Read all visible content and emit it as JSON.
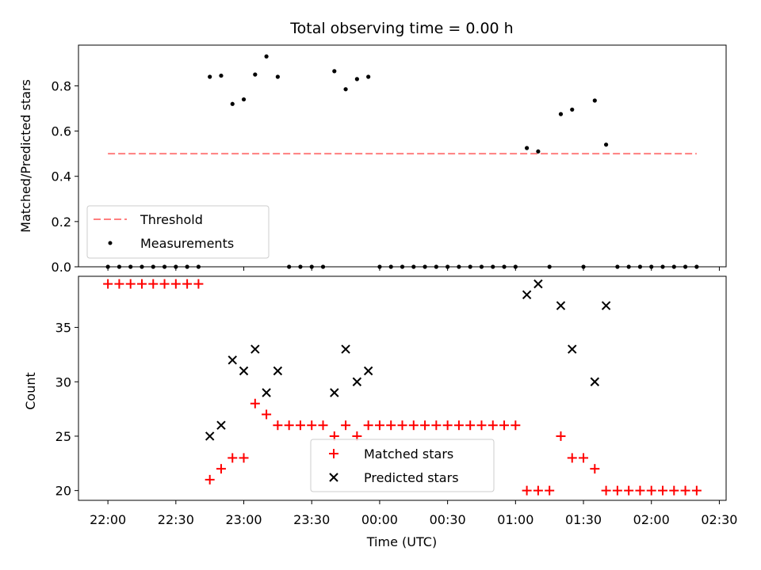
{
  "chart_data": [
    {
      "type": "scatter",
      "title": "Total observing time = 0.00 h",
      "xlabel": "",
      "ylabel": "Matched/Predicted stars",
      "ylim": [
        0,
        0.98
      ],
      "yticks": [
        0.0,
        0.2,
        0.4,
        0.6,
        0.8
      ],
      "ytick_labels": [
        "0.0",
        "0.2",
        "0.4",
        "0.6",
        "0.8"
      ],
      "grid": false,
      "legend": "lower-left",
      "series": [
        {
          "name": "Threshold",
          "style": "dashed-line",
          "color": "#ff7f7f",
          "x": [
            "22:00",
            "02:20"
          ],
          "y": [
            0.5,
            0.5
          ]
        },
        {
          "name": "Measurements",
          "style": "dot",
          "color": "#000000",
          "x": [
            "22:00",
            "22:05",
            "22:10",
            "22:15",
            "22:20",
            "22:25",
            "22:30",
            "22:35",
            "22:40",
            "22:45",
            "22:50",
            "22:55",
            "23:00",
            "23:05",
            "23:10",
            "23:15",
            "23:20",
            "23:25",
            "23:30",
            "23:35",
            "23:40",
            "23:45",
            "23:50",
            "23:55",
            "00:00",
            "00:05",
            "00:10",
            "00:15",
            "00:20",
            "00:25",
            "00:30",
            "00:35",
            "00:40",
            "00:45",
            "00:50",
            "00:55",
            "01:00",
            "01:05",
            "01:10",
            "01:15",
            "01:20",
            "01:25",
            "01:30",
            "01:35",
            "01:40",
            "01:45",
            "01:50",
            "01:55",
            "02:00",
            "02:05",
            "02:10",
            "02:15",
            "02:20"
          ],
          "y": [
            0,
            0,
            0,
            0,
            0,
            0,
            0,
            0,
            0,
            0.84,
            0.845,
            0.72,
            0.74,
            0.85,
            0.93,
            0.84,
            0,
            0,
            0,
            0,
            0.865,
            0.785,
            0.83,
            0.84,
            0,
            0,
            0,
            0,
            0,
            0,
            0,
            0,
            0,
            0,
            0,
            0,
            0,
            0.525,
            0.51,
            0,
            0.675,
            0.695,
            0,
            0.735,
            0.54,
            0,
            0,
            0,
            0,
            0,
            0,
            0,
            0
          ]
        }
      ]
    },
    {
      "type": "scatter",
      "title": "",
      "xlabel": "Time (UTC)",
      "ylabel": "Count",
      "ylim": [
        19.1,
        39.7
      ],
      "yticks": [
        20,
        25,
        30,
        35
      ],
      "ytick_labels": [
        "20",
        "25",
        "30",
        "35"
      ],
      "xlim": [
        "21:47",
        "02:33"
      ],
      "xticks": [
        "22:00",
        "22:30",
        "23:00",
        "23:30",
        "00:00",
        "00:30",
        "01:00",
        "01:30",
        "02:00",
        "02:30"
      ],
      "xtick_labels": [
        "22:00",
        "22:30",
        "23:00",
        "23:30",
        "00:00",
        "00:30",
        "01:00",
        "01:30",
        "02:00",
        "02:30"
      ],
      "grid": false,
      "legend": "lower-center",
      "series": [
        {
          "name": "Matched stars",
          "style": "plus",
          "color": "#ff0000",
          "x": [
            "22:00",
            "22:05",
            "22:10",
            "22:15",
            "22:20",
            "22:25",
            "22:30",
            "22:35",
            "22:40",
            "22:45",
            "22:50",
            "22:55",
            "23:00",
            "23:05",
            "23:10",
            "23:15",
            "23:20",
            "23:25",
            "23:30",
            "23:35",
            "23:40",
            "23:45",
            "23:50",
            "23:55",
            "00:00",
            "00:05",
            "00:10",
            "00:15",
            "00:20",
            "00:25",
            "00:30",
            "00:35",
            "00:40",
            "00:45",
            "00:50",
            "00:55",
            "01:00",
            "01:05",
            "01:10",
            "01:15",
            "01:20",
            "01:25",
            "01:30",
            "01:35",
            "01:40",
            "01:45",
            "01:50",
            "01:55",
            "02:00",
            "02:05",
            "02:10",
            "02:15",
            "02:20"
          ],
          "y": [
            39,
            39,
            39,
            39,
            39,
            39,
            39,
            39,
            39,
            21,
            22,
            23,
            23,
            28,
            27,
            26,
            26,
            26,
            26,
            26,
            25,
            26,
            25,
            26,
            26,
            26,
            26,
            26,
            26,
            26,
            26,
            26,
            26,
            26,
            26,
            26,
            26,
            20,
            20,
            20,
            25,
            23,
            23,
            22,
            20,
            20,
            20,
            20,
            20,
            20,
            20,
            20,
            20
          ]
        },
        {
          "name": "Predicted stars",
          "style": "cross",
          "color": "#000000",
          "x": [
            "22:45",
            "22:50",
            "22:55",
            "23:00",
            "23:05",
            "23:10",
            "23:15",
            "23:40",
            "23:45",
            "23:50",
            "23:55",
            "01:05",
            "01:10",
            "01:20",
            "01:25",
            "01:35",
            "01:40"
          ],
          "y": [
            25,
            26,
            32,
            31,
            33,
            29,
            31,
            29,
            33,
            30,
            31,
            38,
            39,
            37,
            33,
            30,
            37
          ]
        }
      ]
    }
  ]
}
